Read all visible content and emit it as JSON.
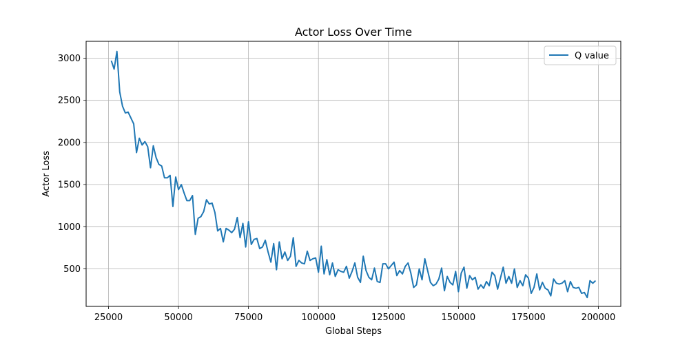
{
  "chart_data": {
    "type": "line",
    "title": "Actor Loss Over Time",
    "xlabel": "Global Steps",
    "ylabel": "Actor Loss",
    "xlim": [
      17000,
      208000
    ],
    "ylim": [
      55,
      3200
    ],
    "xticks": [
      25000,
      50000,
      75000,
      100000,
      125000,
      150000,
      175000,
      200000
    ],
    "xtick_labels": [
      "25000",
      "50000",
      "75000",
      "100000",
      "125000",
      "150000",
      "175000",
      "200000"
    ],
    "yticks": [
      500,
      1000,
      1500,
      2000,
      2500,
      3000
    ],
    "ytick_labels": [
      "500",
      "1000",
      "1500",
      "2000",
      "2500",
      "3000"
    ],
    "grid": true,
    "legend_position": "upper right",
    "series": [
      {
        "name": "Q value",
        "color": "#1f77b4",
        "points": [
          [
            26000,
            2970
          ],
          [
            27000,
            2870
          ],
          [
            28000,
            3080
          ],
          [
            29000,
            2600
          ],
          [
            30000,
            2430
          ],
          [
            31000,
            2350
          ],
          [
            32000,
            2360
          ],
          [
            34000,
            2220
          ],
          [
            35000,
            1880
          ],
          [
            36000,
            2050
          ],
          [
            37000,
            1970
          ],
          [
            38000,
            2010
          ],
          [
            39000,
            1950
          ],
          [
            40000,
            1700
          ],
          [
            41000,
            1960
          ],
          [
            42000,
            1820
          ],
          [
            43000,
            1740
          ],
          [
            44000,
            1720
          ],
          [
            45000,
            1580
          ],
          [
            46000,
            1580
          ],
          [
            47000,
            1610
          ],
          [
            48000,
            1240
          ],
          [
            49000,
            1590
          ],
          [
            50000,
            1440
          ],
          [
            51000,
            1500
          ],
          [
            52000,
            1400
          ],
          [
            53000,
            1310
          ],
          [
            54000,
            1310
          ],
          [
            55000,
            1370
          ],
          [
            56000,
            910
          ],
          [
            57000,
            1100
          ],
          [
            58000,
            1120
          ],
          [
            59000,
            1180
          ],
          [
            60000,
            1320
          ],
          [
            61000,
            1270
          ],
          [
            62000,
            1280
          ],
          [
            63000,
            1170
          ],
          [
            64000,
            950
          ],
          [
            65000,
            980
          ],
          [
            66000,
            820
          ],
          [
            67000,
            980
          ],
          [
            68000,
            960
          ],
          [
            69000,
            930
          ],
          [
            70000,
            970
          ],
          [
            71000,
            1110
          ],
          [
            72000,
            870
          ],
          [
            73000,
            1040
          ],
          [
            74000,
            760
          ],
          [
            75000,
            1060
          ],
          [
            76000,
            790
          ],
          [
            77000,
            850
          ],
          [
            78000,
            860
          ],
          [
            79000,
            740
          ],
          [
            80000,
            760
          ],
          [
            81000,
            840
          ],
          [
            82000,
            700
          ],
          [
            83000,
            580
          ],
          [
            84000,
            800
          ],
          [
            85000,
            490
          ],
          [
            86000,
            820
          ],
          [
            87000,
            620
          ],
          [
            88000,
            700
          ],
          [
            89000,
            600
          ],
          [
            90000,
            650
          ],
          [
            91000,
            870
          ],
          [
            92000,
            530
          ],
          [
            93000,
            600
          ],
          [
            94000,
            570
          ],
          [
            95000,
            560
          ],
          [
            96000,
            710
          ],
          [
            97000,
            600
          ],
          [
            98000,
            620
          ],
          [
            99000,
            630
          ],
          [
            100000,
            460
          ],
          [
            101000,
            770
          ],
          [
            102000,
            440
          ],
          [
            103000,
            610
          ],
          [
            104000,
            430
          ],
          [
            105000,
            570
          ],
          [
            106000,
            410
          ],
          [
            107000,
            490
          ],
          [
            108000,
            470
          ],
          [
            109000,
            460
          ],
          [
            110000,
            530
          ],
          [
            111000,
            390
          ],
          [
            112000,
            470
          ],
          [
            113000,
            570
          ],
          [
            114000,
            400
          ],
          [
            115000,
            340
          ],
          [
            116000,
            650
          ],
          [
            117000,
            480
          ],
          [
            118000,
            400
          ],
          [
            119000,
            370
          ],
          [
            120000,
            510
          ],
          [
            121000,
            350
          ],
          [
            122000,
            340
          ],
          [
            123000,
            560
          ],
          [
            124000,
            560
          ],
          [
            125000,
            500
          ],
          [
            126000,
            540
          ],
          [
            127000,
            580
          ],
          [
            128000,
            420
          ],
          [
            129000,
            480
          ],
          [
            130000,
            440
          ],
          [
            131000,
            530
          ],
          [
            132000,
            570
          ],
          [
            133000,
            450
          ],
          [
            134000,
            280
          ],
          [
            135000,
            310
          ],
          [
            136000,
            500
          ],
          [
            137000,
            370
          ],
          [
            138000,
            620
          ],
          [
            139000,
            480
          ],
          [
            140000,
            340
          ],
          [
            141000,
            300
          ],
          [
            142000,
            320
          ],
          [
            143000,
            380
          ],
          [
            144000,
            510
          ],
          [
            145000,
            240
          ],
          [
            146000,
            410
          ],
          [
            147000,
            340
          ],
          [
            148000,
            310
          ],
          [
            149000,
            470
          ],
          [
            150000,
            230
          ],
          [
            151000,
            450
          ],
          [
            152000,
            520
          ],
          [
            153000,
            270
          ],
          [
            154000,
            420
          ],
          [
            155000,
            370
          ],
          [
            156000,
            400
          ],
          [
            157000,
            260
          ],
          [
            158000,
            310
          ],
          [
            159000,
            270
          ],
          [
            160000,
            350
          ],
          [
            161000,
            300
          ],
          [
            162000,
            460
          ],
          [
            163000,
            420
          ],
          [
            164000,
            260
          ],
          [
            165000,
            390
          ],
          [
            166000,
            520
          ],
          [
            167000,
            330
          ],
          [
            168000,
            410
          ],
          [
            169000,
            330
          ],
          [
            170000,
            500
          ],
          [
            171000,
            280
          ],
          [
            172000,
            360
          ],
          [
            173000,
            300
          ],
          [
            174000,
            430
          ],
          [
            175000,
            390
          ],
          [
            176000,
            210
          ],
          [
            177000,
            280
          ],
          [
            178000,
            440
          ],
          [
            179000,
            250
          ],
          [
            180000,
            340
          ],
          [
            181000,
            270
          ],
          [
            182000,
            250
          ],
          [
            183000,
            180
          ],
          [
            184000,
            380
          ],
          [
            185000,
            330
          ],
          [
            186000,
            320
          ],
          [
            187000,
            330
          ],
          [
            188000,
            360
          ],
          [
            189000,
            230
          ],
          [
            190000,
            350
          ],
          [
            191000,
            280
          ],
          [
            192000,
            270
          ],
          [
            193000,
            280
          ],
          [
            194000,
            210
          ],
          [
            195000,
            220
          ],
          [
            196000,
            160
          ],
          [
            197000,
            360
          ],
          [
            198000,
            330
          ],
          [
            199000,
            360
          ]
        ]
      }
    ]
  }
}
